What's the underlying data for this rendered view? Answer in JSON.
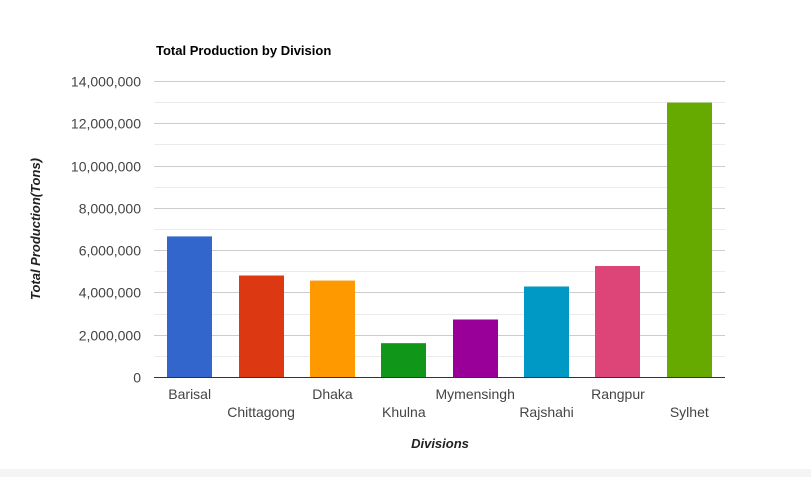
{
  "chart_data": {
    "type": "bar",
    "title": "Total Production by Division",
    "xlabel": "Divisions",
    "ylabel": "Total Production(Tons)",
    "categories": [
      "Barisal",
      "Chittagong",
      "Dhaka",
      "Khulna",
      "Mymensingh",
      "Rajshahi",
      "Rangpur",
      "Sylhet"
    ],
    "values": [
      6650000,
      4800000,
      4560000,
      1600000,
      2720000,
      4280000,
      5250000,
      12980000
    ],
    "colors": [
      "#3366cc",
      "#dc3912",
      "#ff9900",
      "#109618",
      "#990099",
      "#0099c6",
      "#dd4477",
      "#66aa00"
    ],
    "ylim": [
      0,
      14000000
    ],
    "yticks": [
      0,
      2000000,
      4000000,
      6000000,
      8000000,
      10000000,
      12000000,
      14000000
    ],
    "ytick_labels": [
      "0",
      "2,000,000",
      "4,000,000",
      "6,000,000",
      "8,000,000",
      "10,000,000",
      "12,000,000",
      "14,000,000"
    ],
    "grid": true,
    "legend": "none"
  }
}
